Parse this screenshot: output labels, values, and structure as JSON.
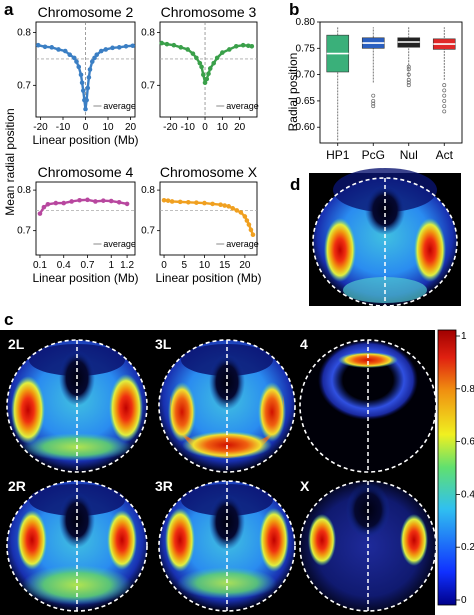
{
  "panel_labels": {
    "a": "a",
    "b": "b",
    "c": "c",
    "d": "d"
  },
  "chart_data": [
    {
      "type": "line",
      "title": "Chromosome 2",
      "xlabel": "Linear position (Mb)",
      "ylabel": "Mean radial position",
      "xlim": [
        -22,
        22
      ],
      "ylim": [
        0.64,
        0.82
      ],
      "xticks": [
        -20,
        -10,
        0,
        10,
        20
      ],
      "yticks": [
        0.7,
        0.8
      ],
      "reference_line": {
        "label": "average",
        "y": 0.75
      },
      "series": [
        {
          "color": "#3b7fc4",
          "x": [
            -21,
            -18,
            -15,
            -12,
            -9,
            -7,
            -5,
            -4,
            -3,
            -2,
            -1.5,
            -1,
            -0.5,
            0,
            0.5,
            1,
            1.5,
            2,
            3,
            4,
            5,
            7,
            9,
            12,
            15,
            18,
            21
          ],
          "y": [
            0.776,
            0.773,
            0.772,
            0.768,
            0.765,
            0.758,
            0.752,
            0.745,
            0.735,
            0.72,
            0.705,
            0.69,
            0.672,
            0.655,
            0.672,
            0.695,
            0.715,
            0.73,
            0.745,
            0.752,
            0.758,
            0.765,
            0.768,
            0.771,
            0.772,
            0.774,
            0.775
          ]
        }
      ]
    },
    {
      "type": "line",
      "title": "Chromosome 3",
      "xlabel": "",
      "ylabel": "",
      "xlim": [
        -26,
        30
      ],
      "ylim": [
        0.64,
        0.82
      ],
      "xticks": [
        -20,
        -10,
        0,
        10,
        20
      ],
      "yticks": [
        0.7,
        0.8
      ],
      "reference_line": {
        "label": "average",
        "y": 0.75
      },
      "series": [
        {
          "color": "#3aa04a",
          "x": [
            -25,
            -22,
            -18,
            -14,
            -10,
            -7,
            -5,
            -3,
            -2,
            -1,
            0,
            1,
            2,
            3,
            5,
            7,
            10,
            14,
            18,
            22,
            25,
            27
          ],
          "y": [
            0.78,
            0.778,
            0.776,
            0.772,
            0.768,
            0.76,
            0.752,
            0.742,
            0.735,
            0.72,
            0.705,
            0.712,
            0.722,
            0.732,
            0.742,
            0.752,
            0.762,
            0.768,
            0.774,
            0.776,
            0.775,
            0.774
          ]
        }
      ]
    },
    {
      "type": "line",
      "title": "Chromosome 4",
      "xlabel": "Linear position (Mb)",
      "ylabel": "",
      "xlim": [
        0.05,
        1.3
      ],
      "ylim": [
        0.64,
        0.82
      ],
      "xticks": [
        0.1,
        0.4,
        0.7,
        1.0,
        1.2
      ],
      "yticks": [
        0.7,
        0.8
      ],
      "reference_line": {
        "label": "average",
        "y": 0.75
      },
      "series": [
        {
          "color": "#b8479f",
          "x": [
            0.1,
            0.15,
            0.2,
            0.3,
            0.4,
            0.5,
            0.6,
            0.7,
            0.8,
            0.9,
            1.0,
            1.1,
            1.2
          ],
          "y": [
            0.742,
            0.758,
            0.765,
            0.768,
            0.768,
            0.772,
            0.775,
            0.776,
            0.772,
            0.774,
            0.773,
            0.77,
            0.766
          ]
        }
      ]
    },
    {
      "type": "line",
      "title": "Chromosome X",
      "xlabel": "Linear position (Mb)",
      "ylabel": "",
      "xlim": [
        -1,
        23
      ],
      "ylim": [
        0.64,
        0.82
      ],
      "xticks": [
        0,
        5,
        10,
        15,
        20
      ],
      "yticks": [
        0.7,
        0.8
      ],
      "reference_line": {
        "label": "average",
        "y": 0.75
      },
      "series": [
        {
          "color": "#f0a020",
          "x": [
            0,
            1,
            2,
            4,
            6,
            8,
            10,
            12,
            14,
            15,
            16,
            17,
            18,
            19,
            20,
            20.5,
            21,
            21.5,
            22
          ],
          "y": [
            0.775,
            0.774,
            0.772,
            0.771,
            0.77,
            0.769,
            0.768,
            0.766,
            0.764,
            0.762,
            0.76,
            0.755,
            0.75,
            0.745,
            0.735,
            0.725,
            0.715,
            0.702,
            0.69
          ]
        }
      ]
    },
    {
      "type": "box",
      "xlabel": "",
      "ylabel": "Radial position",
      "ylim": [
        0.57,
        0.8
      ],
      "yticks": [
        0.6,
        0.65,
        0.7,
        0.75,
        0.8
      ],
      "categories": [
        "HP1",
        "PcG",
        "Nul",
        "Act"
      ],
      "colors": [
        "#3ab07a",
        "#2a5fc0",
        "#222222",
        "#e02828"
      ],
      "boxes": [
        {
          "min": 0.575,
          "q1": 0.705,
          "median": 0.74,
          "q3": 0.775,
          "max": 0.79,
          "outliers": []
        },
        {
          "min": 0.685,
          "q1": 0.75,
          "median": 0.76,
          "q3": 0.77,
          "max": 0.79,
          "outliers": [
            0.64,
            0.645,
            0.65,
            0.66
          ]
        },
        {
          "min": 0.695,
          "q1": 0.752,
          "median": 0.762,
          "q3": 0.77,
          "max": 0.79,
          "outliers": [
            0.68,
            0.685,
            0.69,
            0.7,
            0.71,
            0.715
          ]
        },
        {
          "min": 0.69,
          "q1": 0.748,
          "median": 0.758,
          "q3": 0.768,
          "max": 0.79,
          "outliers": [
            0.63,
            0.64,
            0.65,
            0.66,
            0.67,
            0.68
          ]
        }
      ]
    },
    {
      "type": "heatmap",
      "panels": [
        "2L",
        "3L",
        "4",
        "2R",
        "3R",
        "X"
      ],
      "colorbar": {
        "ticks": [
          "1",
          "0.8",
          "0.6",
          "0.4",
          "0.2",
          "0"
        ],
        "colors": [
          "#00008a",
          "#1030ff",
          "#30c0f0",
          "#60e070",
          "#f0f020",
          "#f09010",
          "#e02010",
          "#a00000"
        ]
      }
    }
  ]
}
